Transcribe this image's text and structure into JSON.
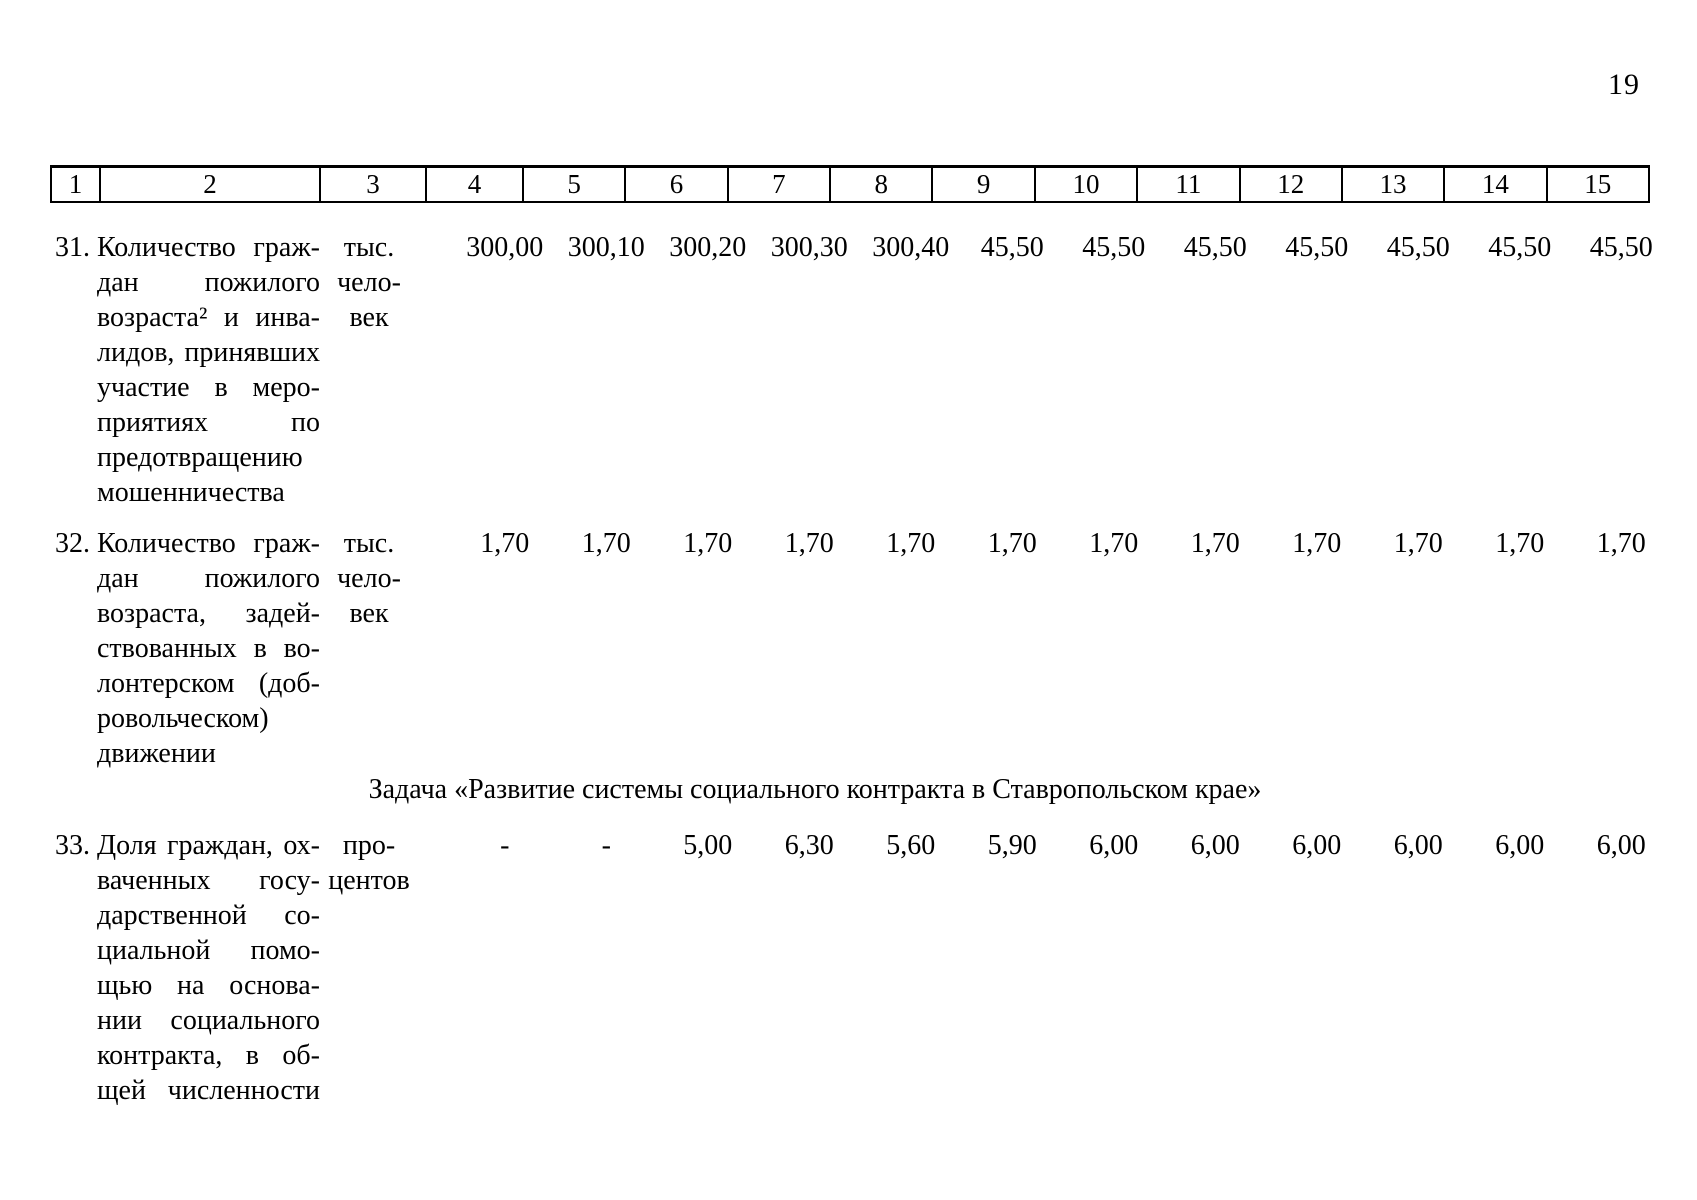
{
  "page": {
    "number": "19"
  },
  "table": {
    "header_cols": [
      "1",
      "2",
      "3",
      "4",
      "5",
      "6",
      "7",
      "8",
      "9",
      "10",
      "11",
      "12",
      "13",
      "14",
      "15"
    ],
    "section_heading": "Задача «Развитие системы социального контракта в Ставропольском крае»",
    "rows": [
      {
        "num": "31.",
        "name_lines": [
          "Количество граж-",
          "дан пожилого",
          "возраста² и инва-",
          "лидов, принявших",
          "участие в меро-",
          "приятиях по",
          "предотвращению",
          "мошенничества"
        ],
        "unit_lines": [
          "тыс.",
          "чело-",
          "век"
        ],
        "values": [
          "300,00",
          "300,10",
          "300,20",
          "300,30",
          "300,40",
          "45,50",
          "45,50",
          "45,50",
          "45,50",
          "45,50",
          "45,50",
          "45,50"
        ]
      },
      {
        "num": "32.",
        "name_lines": [
          "Количество граж-",
          "дан пожилого",
          "возраста, задей-",
          "ствованных в во-",
          "лонтерском (доб-",
          "ровольческом)",
          "движении"
        ],
        "unit_lines": [
          "тыс.",
          "чело-",
          "век"
        ],
        "values": [
          "1,70",
          "1,70",
          "1,70",
          "1,70",
          "1,70",
          "1,70",
          "1,70",
          "1,70",
          "1,70",
          "1,70",
          "1,70",
          "1,70"
        ]
      },
      {
        "num": "33.",
        "name_lines": [
          "Доля граждан, ох-",
          "ваченных госу-",
          "дарственной со-",
          "циальной помо-",
          "щью на основа-",
          "нии социального",
          "контракта, в об-",
          "щей численности"
        ],
        "unit_lines": [
          "про-",
          "центов"
        ],
        "values": [
          "-",
          "-",
          "5,00",
          "6,30",
          "5,60",
          "5,90",
          "6,00",
          "6,00",
          "6,00",
          "6,00",
          "6,00",
          "6,00"
        ]
      }
    ]
  }
}
